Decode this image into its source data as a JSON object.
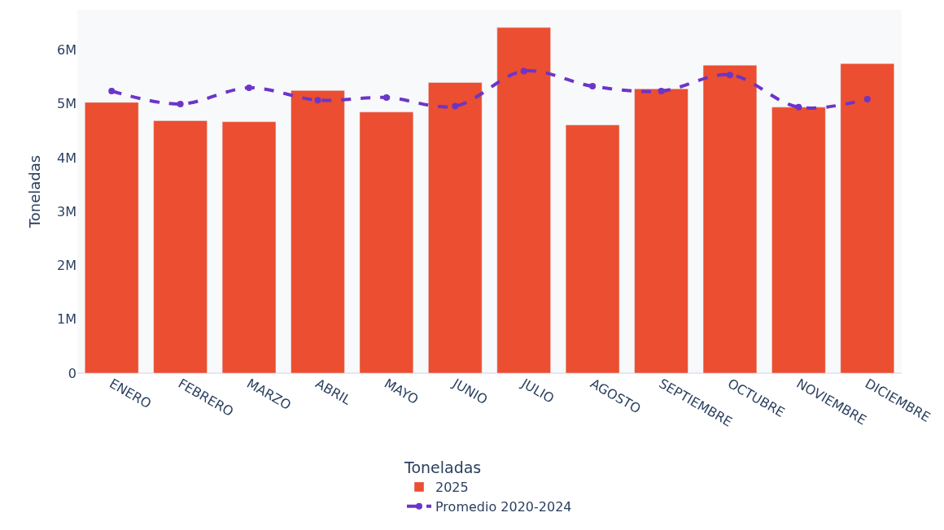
{
  "chart_data": {
    "type": "bar",
    "ylabel": "Toneladas",
    "legend_title": "Toneladas",
    "categories": [
      "ENERO",
      "FEBRERO",
      "MARZO",
      "ABRIL",
      "MAYO",
      "JUNIO",
      "JULIO",
      "AGOSTO",
      "SEPTIEMBRE",
      "OCTUBRE",
      "NOVIEMBRE",
      "DICIEMBRE"
    ],
    "series": [
      {
        "name": "2025",
        "color": "#eb4e30",
        "values": [
          5030000,
          4690000,
          4670000,
          5250000,
          4850000,
          5400000,
          6420000,
          4610000,
          5280000,
          5720000,
          4940000,
          5750000
        ]
      },
      {
        "name": "Promedio 2020-2024",
        "type": "line",
        "color": "#6c35c8",
        "marker": "circle",
        "line_style": "dashed",
        "values": [
          5240000,
          5000000,
          5300000,
          5070000,
          5120000,
          4960000,
          5610000,
          5330000,
          5240000,
          5540000,
          4940000,
          5090000
        ]
      }
    ],
    "ylim": [
      0,
      6750000
    ],
    "yticks": [
      0,
      {
        "value": 1000000,
        "label": "1M"
      },
      {
        "value": 2000000,
        "label": "2M"
      },
      {
        "value": 3000000,
        "label": "3M"
      },
      {
        "value": 4000000,
        "label": "4M"
      },
      {
        "value": 5000000,
        "label": "5M"
      },
      {
        "value": 6000000,
        "label": "6M"
      }
    ],
    "grid": false,
    "legend": "bottom"
  }
}
